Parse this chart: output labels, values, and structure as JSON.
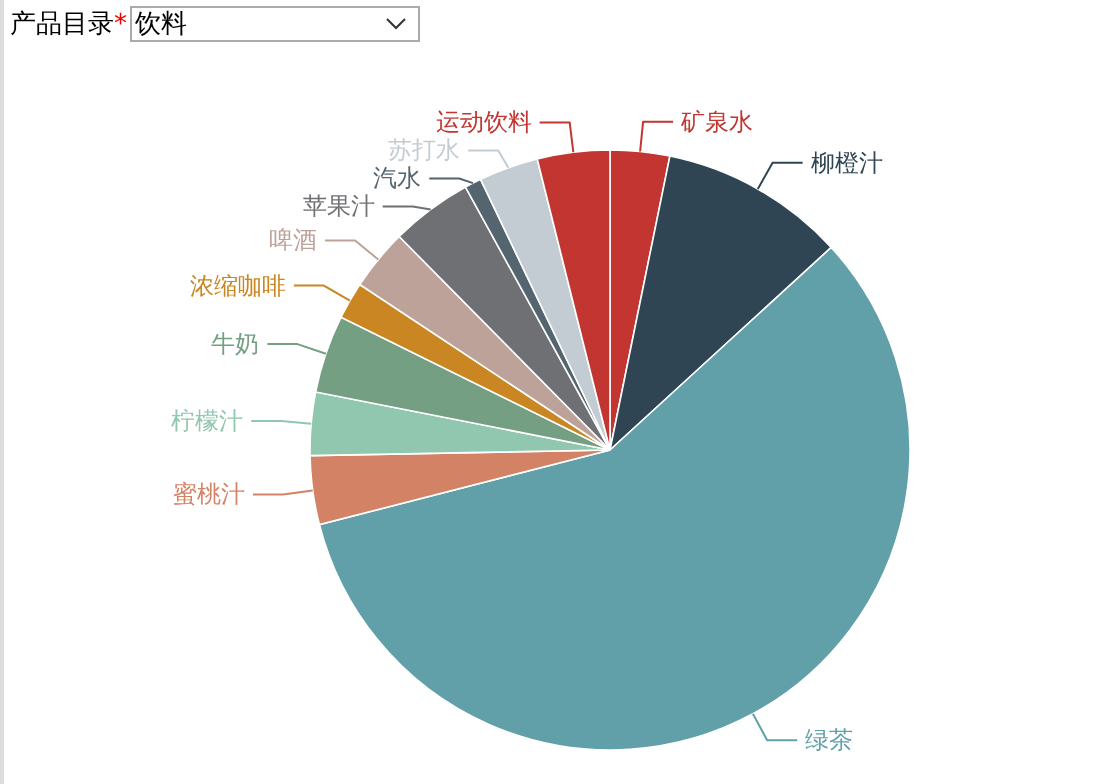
{
  "chart_data": {
    "type": "pie",
    "categories": [
      "矿泉水",
      "柳橙汁",
      "绿茶",
      "蜜桃汁",
      "柠檬汁",
      "牛奶",
      "浓缩咖啡",
      "啤酒",
      "苹果汁",
      "汽水",
      "苏打水",
      "运动饮料"
    ],
    "values": [
      3.2,
      10,
      57.8,
      3.7,
      3.4,
      4.2,
      2,
      3.3,
      4.4,
      0.9,
      3.2,
      3.9
    ],
    "colors": [
      "#c23531",
      "#2f4554",
      "#61a0a8",
      "#d48265",
      "#91c7ae",
      "#749f83",
      "#ca8622",
      "#bda29a",
      "#6e7074",
      "#546570",
      "#c4ccd3",
      "#c23531"
    ],
    "annotations": [
      "产品目录",
      "*",
      "饮料"
    ]
  }
}
